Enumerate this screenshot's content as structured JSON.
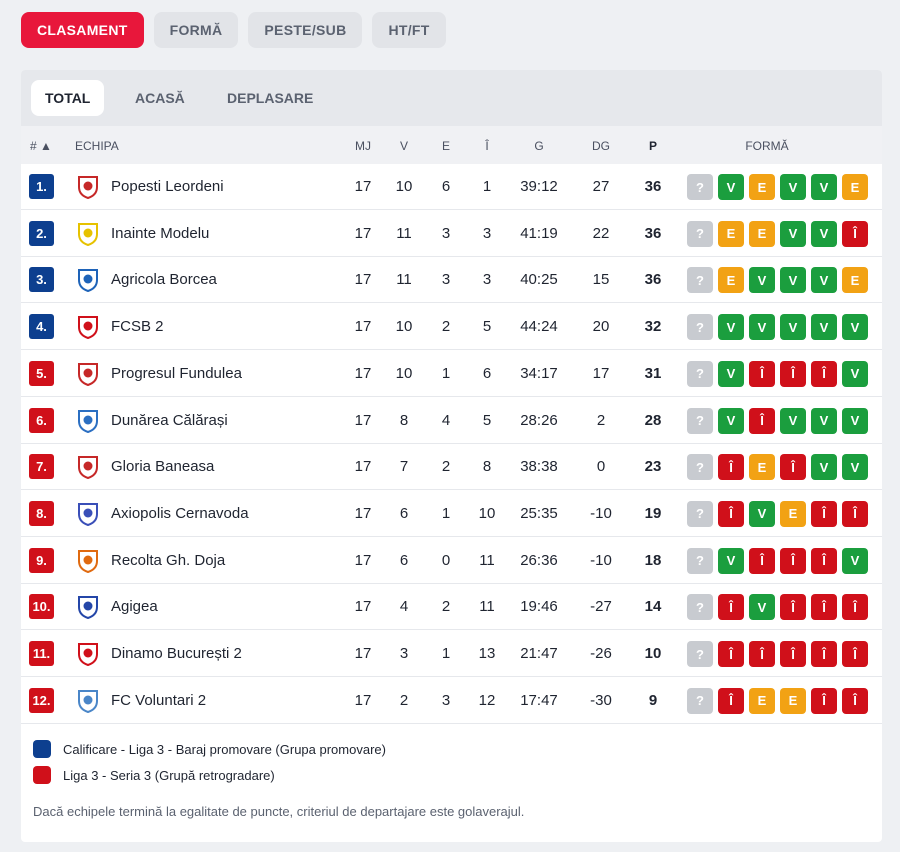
{
  "top_tabs": [
    {
      "label": "CLASAMENT",
      "active": true
    },
    {
      "label": "FORMĂ",
      "active": false
    },
    {
      "label": "PESTE/SUB",
      "active": false
    },
    {
      "label": "HT/FT",
      "active": false
    }
  ],
  "sub_tabs": [
    {
      "label": "TOTAL",
      "active": true
    },
    {
      "label": "ACASĂ",
      "active": false
    },
    {
      "label": "DEPLASARE",
      "active": false
    }
  ],
  "headers": {
    "rank": "# ▲",
    "team": "ECHIPA",
    "mj": "MJ",
    "v": "V",
    "e": "E",
    "i": "Î",
    "g": "G",
    "dg": "DG",
    "p": "P",
    "form": "FORMĂ"
  },
  "colors": {
    "promotion": "#0d3f8f",
    "relegation": "#d0101a",
    "win": "#1b9e3e",
    "draw": "#f2a214",
    "loss": "#d0101a",
    "unknown": "#c8cbd0",
    "accent": "#e8173b"
  },
  "form_labels": {
    "win": "V",
    "draw": "E",
    "loss": "Î",
    "unknown": "?"
  },
  "rows": [
    {
      "rank": "1.",
      "zone": "promotion",
      "team": "Popesti Leordeni",
      "mj": "17",
      "v": "10",
      "e": "6",
      "i": "1",
      "g": "39:12",
      "dg": "27",
      "p": "36",
      "form": [
        "unknown",
        "win",
        "draw",
        "win",
        "win",
        "draw"
      ],
      "logo_color": "#c62828"
    },
    {
      "rank": "2.",
      "zone": "promotion",
      "team": "Inainte Modelu",
      "mj": "17",
      "v": "11",
      "e": "3",
      "i": "3",
      "g": "41:19",
      "dg": "22",
      "p": "36",
      "form": [
        "unknown",
        "draw",
        "draw",
        "win",
        "win",
        "loss"
      ],
      "logo_color": "#e6c200"
    },
    {
      "rank": "3.",
      "zone": "promotion",
      "team": "Agricola Borcea",
      "mj": "17",
      "v": "11",
      "e": "3",
      "i": "3",
      "g": "40:25",
      "dg": "15",
      "p": "36",
      "form": [
        "unknown",
        "draw",
        "win",
        "win",
        "win",
        "draw"
      ],
      "logo_color": "#1e63b8"
    },
    {
      "rank": "4.",
      "zone": "promotion",
      "team": "FCSB 2",
      "mj": "17",
      "v": "10",
      "e": "2",
      "i": "5",
      "g": "44:24",
      "dg": "20",
      "p": "32",
      "form": [
        "unknown",
        "win",
        "win",
        "win",
        "win",
        "win"
      ],
      "logo_color": "#d0101a"
    },
    {
      "rank": "5.",
      "zone": "relegation",
      "team": "Progresul Fundulea",
      "mj": "17",
      "v": "10",
      "e": "1",
      "i": "6",
      "g": "34:17",
      "dg": "17",
      "p": "31",
      "form": [
        "unknown",
        "win",
        "loss",
        "loss",
        "loss",
        "win"
      ],
      "logo_color": "#c62828"
    },
    {
      "rank": "6.",
      "zone": "relegation",
      "team": "Dunărea Călărași",
      "mj": "17",
      "v": "8",
      "e": "4",
      "i": "5",
      "g": "28:26",
      "dg": "2",
      "p": "28",
      "form": [
        "unknown",
        "win",
        "loss",
        "win",
        "win",
        "win"
      ],
      "logo_color": "#2b6fc2"
    },
    {
      "rank": "7.",
      "zone": "relegation",
      "team": "Gloria Baneasa",
      "mj": "17",
      "v": "7",
      "e": "2",
      "i": "8",
      "g": "38:38",
      "dg": "0",
      "p": "23",
      "form": [
        "unknown",
        "loss",
        "draw",
        "loss",
        "win",
        "win"
      ],
      "logo_color": "#c62828"
    },
    {
      "rank": "8.",
      "zone": "relegation",
      "team": "Axiopolis Cernavoda",
      "mj": "17",
      "v": "6",
      "e": "1",
      "i": "10",
      "g": "25:35",
      "dg": "-10",
      "p": "19",
      "form": [
        "unknown",
        "loss",
        "win",
        "draw",
        "loss",
        "loss"
      ],
      "logo_color": "#3a4fb8"
    },
    {
      "rank": "9.",
      "zone": "relegation",
      "team": "Recolta Gh. Doja",
      "mj": "17",
      "v": "6",
      "e": "0",
      "i": "11",
      "g": "26:36",
      "dg": "-10",
      "p": "18",
      "form": [
        "unknown",
        "win",
        "loss",
        "loss",
        "loss",
        "win"
      ],
      "logo_color": "#e06a10"
    },
    {
      "rank": "10.",
      "zone": "relegation",
      "team": "Agigea",
      "mj": "17",
      "v": "4",
      "e": "2",
      "i": "11",
      "g": "19:46",
      "dg": "-27",
      "p": "14",
      "form": [
        "unknown",
        "loss",
        "win",
        "loss",
        "loss",
        "loss"
      ],
      "logo_color": "#2446a8"
    },
    {
      "rank": "11.",
      "zone": "relegation",
      "team": "Dinamo București 2",
      "mj": "17",
      "v": "3",
      "e": "1",
      "i": "13",
      "g": "21:47",
      "dg": "-26",
      "p": "10",
      "form": [
        "unknown",
        "loss",
        "loss",
        "loss",
        "loss",
        "loss"
      ],
      "logo_color": "#d0101a"
    },
    {
      "rank": "12.",
      "zone": "relegation",
      "team": "FC Voluntari 2",
      "mj": "17",
      "v": "2",
      "e": "3",
      "i": "12",
      "g": "17:47",
      "dg": "-30",
      "p": "9",
      "form": [
        "unknown",
        "loss",
        "draw",
        "draw",
        "loss",
        "loss"
      ],
      "logo_color": "#4a86c8"
    }
  ],
  "legend": [
    {
      "zone": "promotion",
      "label": "Calificare - Liga 3 - Baraj promovare (Grupa promovare)"
    },
    {
      "zone": "relegation",
      "label": "Liga 3 - Seria 3 (Grupă retrogradare)"
    }
  ],
  "note": "Dacă echipele termină la egalitate de puncte, criteriul de departajare este golaverajul."
}
